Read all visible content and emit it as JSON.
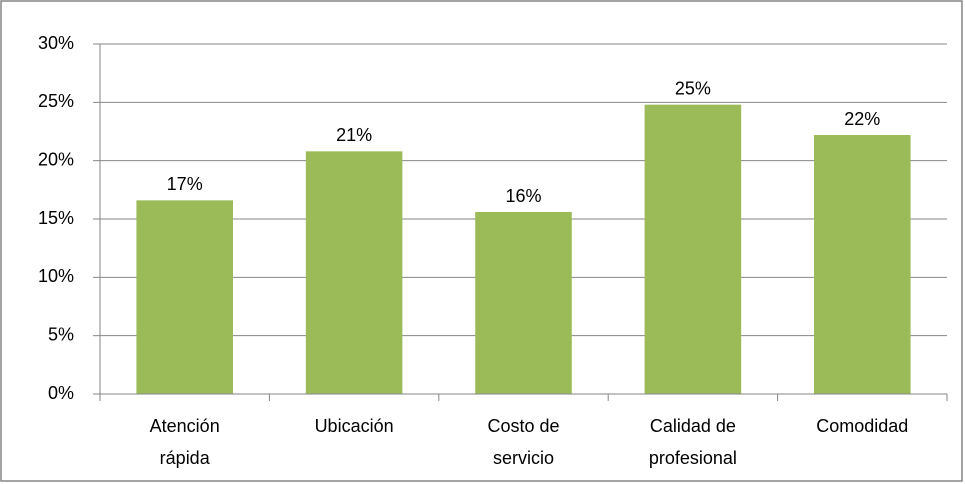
{
  "chart_data": {
    "type": "bar",
    "categories": [
      [
        "Atención",
        "rápida"
      ],
      [
        "Ubicación"
      ],
      [
        "Costo de",
        "servicio"
      ],
      [
        "Calidad de",
        "profesional"
      ],
      [
        "Comodidad"
      ]
    ],
    "values": [
      16.6,
      20.8,
      15.6,
      24.8,
      22.2
    ],
    "value_labels": [
      "17%",
      "21%",
      "16%",
      "25%",
      "22%"
    ],
    "color": "#9bbb59",
    "ylim": [
      0,
      30
    ],
    "yticks": [
      {
        "value": 0,
        "label": "0%"
      },
      {
        "value": 5,
        "label": "5%"
      },
      {
        "value": 10,
        "label": "10%"
      },
      {
        "value": 15,
        "label": "15%"
      },
      {
        "value": 20,
        "label": "20%"
      },
      {
        "value": 25,
        "label": "25%"
      },
      {
        "value": 30,
        "label": "30%"
      }
    ],
    "grid": true
  }
}
